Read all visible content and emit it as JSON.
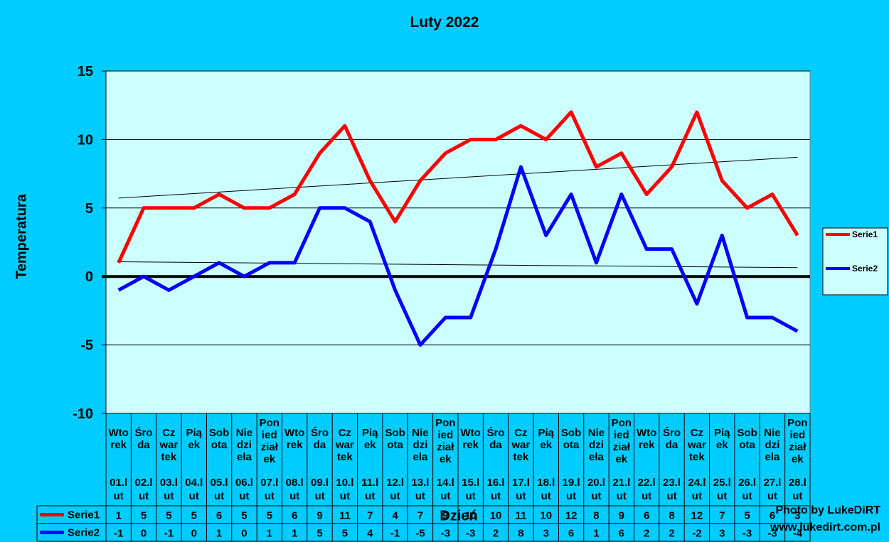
{
  "title": "Luty 2022",
  "ylabel": "Temperatura",
  "xlabel": "Dzień",
  "credit": {
    "line1": "Photo by LukeDiRT",
    "line2": "www.lukedirt.com.pl"
  },
  "colors": {
    "background": "#00CCFF",
    "plot_area": "#CCFFFF",
    "serie1": "#FF0000",
    "serie2": "#0000FF"
  },
  "chart_data": {
    "type": "line",
    "title": "Luty 2022",
    "xlabel": "Dzień",
    "ylabel": "Temperatura",
    "ylim": [
      -10,
      15
    ],
    "yticks": [
      15,
      10,
      5,
      0,
      -5,
      -10
    ],
    "grid": true,
    "legend": "right",
    "trendlines": true,
    "x_days": [
      [
        "Wto",
        "rek"
      ],
      [
        "Śro",
        "da"
      ],
      [
        "Cz",
        "war",
        "tek"
      ],
      [
        "Pią",
        "ek"
      ],
      [
        "Sob",
        "ota"
      ],
      [
        "Nie",
        "dzi",
        "ela"
      ],
      [
        "Pon",
        "ied",
        "ział",
        "ek"
      ],
      [
        "Wto",
        "rek"
      ],
      [
        "Śro",
        "da"
      ],
      [
        "Cz",
        "war",
        "tek"
      ],
      [
        "Pią",
        "ek"
      ],
      [
        "Sob",
        "ota"
      ],
      [
        "Nie",
        "dzi",
        "ela"
      ],
      [
        "Pon",
        "ied",
        "ział",
        "ek"
      ],
      [
        "Wto",
        "rek"
      ],
      [
        "Śro",
        "da"
      ],
      [
        "Cz",
        "war",
        "tek"
      ],
      [
        "Pią",
        "ek"
      ],
      [
        "Sob",
        "ota"
      ],
      [
        "Nie",
        "dzi",
        "ela"
      ],
      [
        "Pon",
        "ied",
        "ział",
        "ek"
      ],
      [
        "Wto",
        "rek"
      ],
      [
        "Śro",
        "da"
      ],
      [
        "Cz",
        "war",
        "tek"
      ],
      [
        "Pią",
        "ek"
      ],
      [
        "Sob",
        "ota"
      ],
      [
        "Nie",
        "dzi",
        "ela"
      ],
      [
        "Pon",
        "ied",
        "ział",
        "ek"
      ]
    ],
    "x_dates": [
      [
        "01.l",
        "ut"
      ],
      [
        "02.l",
        "ut"
      ],
      [
        "03.l",
        "ut"
      ],
      [
        "04.l",
        "ut"
      ],
      [
        "05.l",
        "ut"
      ],
      [
        "06.l",
        "ut"
      ],
      [
        "07.l",
        "ut"
      ],
      [
        "08.l",
        "ut"
      ],
      [
        "09.l",
        "ut"
      ],
      [
        "10.l",
        "ut"
      ],
      [
        "11.l",
        "ut"
      ],
      [
        "12.l",
        "ut"
      ],
      [
        "13.l",
        "ut"
      ],
      [
        "14.l",
        "ut"
      ],
      [
        "15.l",
        "ut"
      ],
      [
        "16.l",
        "ut"
      ],
      [
        "17.l",
        "ut"
      ],
      [
        "18.l",
        "ut"
      ],
      [
        "19.l",
        "ut"
      ],
      [
        "20.l",
        "ut"
      ],
      [
        "21.l",
        "ut"
      ],
      [
        "22.l",
        "ut"
      ],
      [
        "23.l",
        "ut"
      ],
      [
        "24.l",
        "ut"
      ],
      [
        "25.l",
        "ut"
      ],
      [
        "26.l",
        "ut"
      ],
      [
        "27.l",
        "ut"
      ],
      [
        "28.l",
        "ut"
      ]
    ],
    "series": [
      {
        "name": "Serie1",
        "color": "#FF0000",
        "values": [
          1,
          5,
          5,
          5,
          6,
          5,
          5,
          6,
          9,
          11,
          7,
          4,
          7,
          9,
          10,
          10,
          11,
          10,
          12,
          8,
          9,
          6,
          8,
          12,
          7,
          5,
          6,
          3
        ]
      },
      {
        "name": "Serie2",
        "color": "#0000FF",
        "values": [
          -1,
          0,
          -1,
          0,
          1,
          0,
          1,
          1,
          5,
          5,
          4,
          -1,
          -5,
          -3,
          -3,
          2,
          8,
          3,
          6,
          1,
          6,
          2,
          2,
          -2,
          3,
          -3,
          -3,
          -4
        ]
      }
    ]
  }
}
